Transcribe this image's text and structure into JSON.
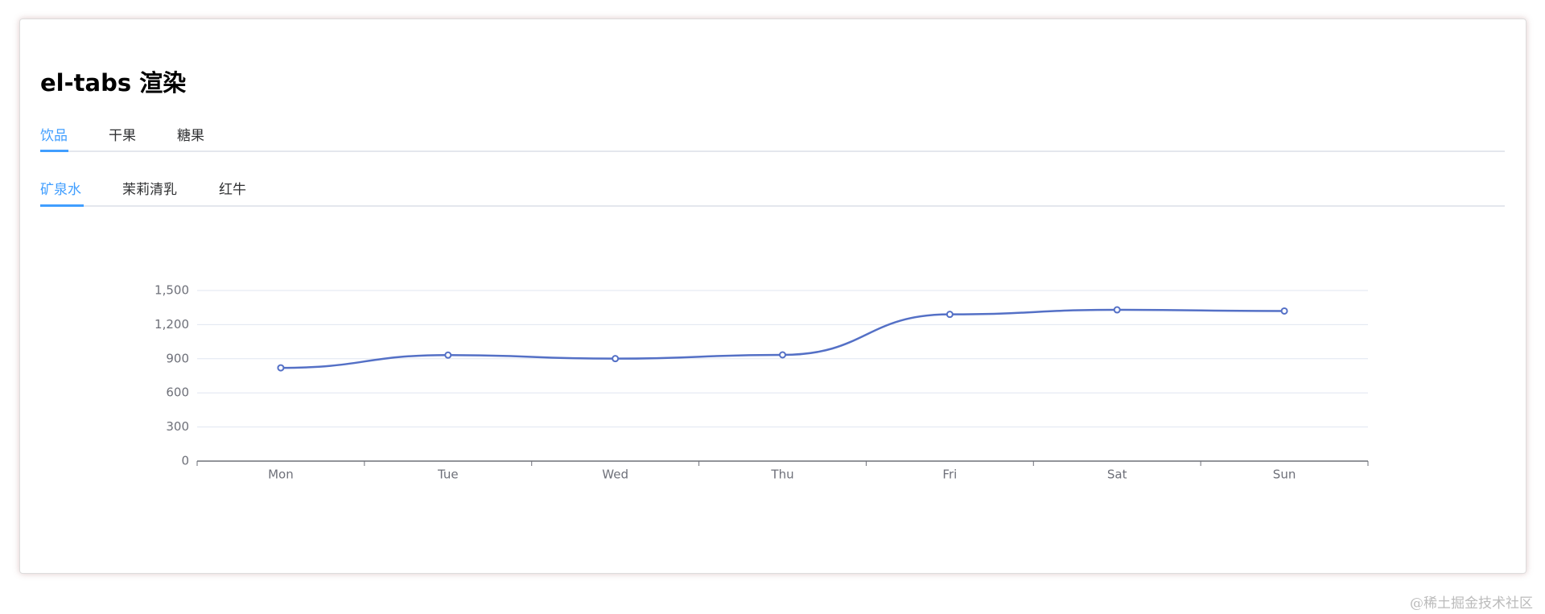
{
  "header": {
    "title": "el-tabs 渲染"
  },
  "tabs": [
    "饮品",
    "干果",
    "糖果"
  ],
  "subtabs": [
    "矿泉水",
    "茉莉清乳",
    "红牛"
  ],
  "chart_data": {
    "type": "line",
    "categories": [
      "Mon",
      "Tue",
      "Wed",
      "Thu",
      "Fri",
      "Sat",
      "Sun"
    ],
    "values": [
      820,
      932,
      901,
      934,
      1290,
      1330,
      1320
    ],
    "color": "#5470c6",
    "ylim": [
      0,
      1500
    ],
    "yticks": [
      0,
      300,
      600,
      900,
      {
        "value": 1200,
        "label": "1,200"
      },
      {
        "value": 1500,
        "label": "1,500"
      }
    ],
    "grid": true,
    "smooth": true
  },
  "watermark": "@稀土掘金技术社区"
}
